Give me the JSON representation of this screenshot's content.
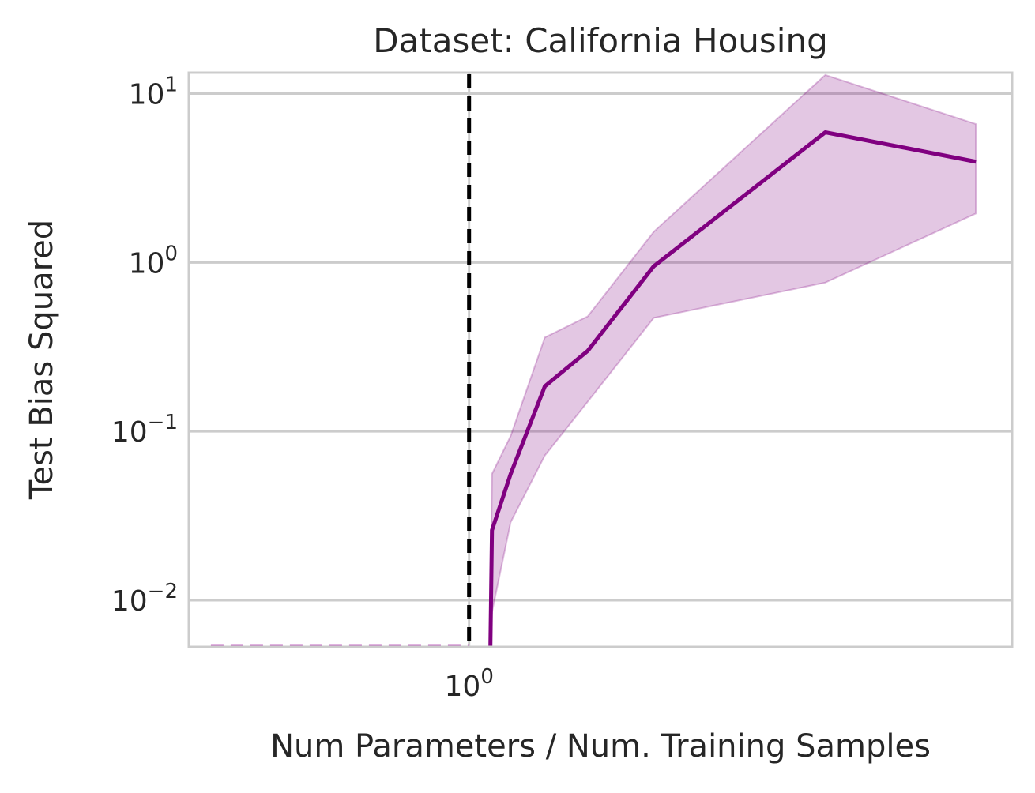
{
  "chart_data": {
    "type": "line",
    "title": "Dataset: California Housing",
    "xlabel": "Num Parameters / Num. Training Samples",
    "ylabel": "Test Bias Squared",
    "xscale": "log",
    "yscale": "log",
    "xlim": [
      0.39,
      6.2
    ],
    "ylim": [
      0.0053,
      13.3
    ],
    "grid": true,
    "x_ticks": [
      {
        "base": "10",
        "exp": "0",
        "value": 1
      }
    ],
    "y_ticks": [
      {
        "base": "10",
        "exp": "1",
        "value": 10
      },
      {
        "base": "10",
        "exp": "0",
        "value": 1
      },
      {
        "base": "10",
        "exp": "−1",
        "value": 0.1
      },
      {
        "base": "10",
        "exp": "−2",
        "value": 0.01
      }
    ],
    "interpolation_threshold": 1.0,
    "series": [
      {
        "color": "#800080",
        "x": [
          1.08,
          1.15,
          1.29,
          1.49,
          1.86,
          3.31,
          5.49
        ],
        "mean": [
          0.026,
          0.056,
          0.185,
          0.3,
          0.95,
          5.9,
          3.95
        ],
        "lower": [
          0.0085,
          0.029,
          0.072,
          0.15,
          0.47,
          0.76,
          1.95
        ],
        "upper": [
          0.056,
          0.094,
          0.36,
          0.48,
          1.52,
          12.9,
          6.6
        ]
      }
    ],
    "below_threshold_series": {
      "color": "#c06ac0",
      "style": "dashed",
      "x_range": [
        0.42,
        1.0
      ],
      "note_value": "below y-range"
    }
  }
}
